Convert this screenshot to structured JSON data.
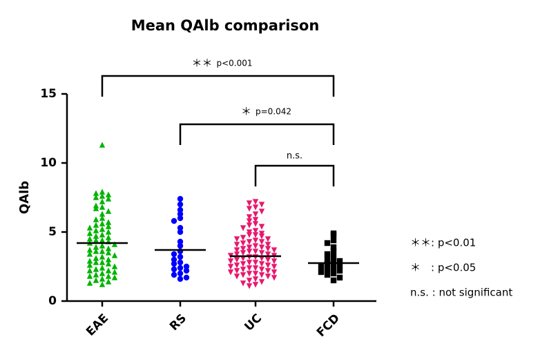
{
  "chart_data": {
    "type": "dot",
    "title": "Mean QAlb comparison",
    "y_label": "QAlb",
    "ylim": [
      0,
      15
    ],
    "yticks": [
      0,
      5,
      10,
      15
    ],
    "categories": [
      "EAE",
      "RS",
      "UC",
      "FCD"
    ],
    "groups": [
      {
        "color": "#00b400",
        "marker": "triangle-up",
        "mean": 4.2,
        "values": [
          11.3,
          7.9,
          7.8,
          7.7,
          7.6,
          7.5,
          7.4,
          7.2,
          6.9,
          6.8,
          6.7,
          6.5,
          6.3,
          6.0,
          5.9,
          5.7,
          5.6,
          5.5,
          5.4,
          5.3,
          5.2,
          5.1,
          5.0,
          4.9,
          4.8,
          4.7,
          4.6,
          4.5,
          4.4,
          4.4,
          4.3,
          4.2,
          4.1,
          4.0,
          3.9,
          3.8,
          3.7,
          3.6,
          3.6,
          3.5,
          3.4,
          3.3,
          3.2,
          3.1,
          3.0,
          2.9,
          2.8,
          2.8,
          2.7,
          2.6,
          2.5,
          2.4,
          2.3,
          2.2,
          2.2,
          2.1,
          2.0,
          1.9,
          1.8,
          1.8,
          1.7,
          1.6,
          1.5,
          1.4,
          1.3,
          1.2
        ]
      },
      {
        "color": "#0000ff",
        "marker": "circle",
        "mean": 3.7,
        "values": [
          7.4,
          7.0,
          6.6,
          6.3,
          6.0,
          5.8,
          5.3,
          5.0,
          4.3,
          4.0,
          3.6,
          3.4,
          3.2,
          3.0,
          2.8,
          2.7,
          2.5,
          2.4,
          2.3,
          2.2,
          2.0,
          1.9,
          1.7,
          1.6
        ]
      },
      {
        "color": "#e8186e",
        "marker": "triangle-down",
        "mean": 3.25,
        "values": [
          7.2,
          7.1,
          7.0,
          6.8,
          6.7,
          6.5,
          6.3,
          6.1,
          5.9,
          5.8,
          5.6,
          5.5,
          5.4,
          5.3,
          5.1,
          5.0,
          4.9,
          4.8,
          4.8,
          4.7,
          4.6,
          4.5,
          4.5,
          4.4,
          4.3,
          4.3,
          4.2,
          4.1,
          4.1,
          4.0,
          3.9,
          3.9,
          3.8,
          3.8,
          3.7,
          3.7,
          3.6,
          3.6,
          3.5,
          3.5,
          3.4,
          3.4,
          3.3,
          3.3,
          3.2,
          3.2,
          3.1,
          3.1,
          3.0,
          3.0,
          2.9,
          2.9,
          2.8,
          2.8,
          2.7,
          2.7,
          2.6,
          2.6,
          2.5,
          2.5,
          2.4,
          2.4,
          2.3,
          2.3,
          2.2,
          2.2,
          2.1,
          2.1,
          2.0,
          2.0,
          1.9,
          1.9,
          1.8,
          1.8,
          1.7,
          1.6,
          1.5,
          1.4,
          1.3,
          1.2,
          1.1
        ]
      },
      {
        "color": "#000000",
        "marker": "square",
        "mean": 2.75,
        "values": [
          4.9,
          4.8,
          4.4,
          4.2,
          3.9,
          3.6,
          3.4,
          3.2,
          3.0,
          2.9,
          2.8,
          2.7,
          2.6,
          2.5,
          2.4,
          2.3,
          2.2,
          2.1,
          2.0,
          1.9,
          1.7,
          1.5
        ]
      }
    ],
    "brackets": [
      {
        "from": 0,
        "to": 3,
        "y": 16.3,
        "stars": "＊＊",
        "p": "p<0.001"
      },
      {
        "from": 1,
        "to": 3,
        "y": 12.8,
        "stars": "＊",
        "p": "p=0.042"
      },
      {
        "from": 2,
        "to": 3,
        "y": 9.8,
        "stars": "n.s."
      }
    ],
    "notes": [
      "＊＊: p<0.01",
      "＊　: p<0.05",
      "n.s. : not significant"
    ]
  }
}
